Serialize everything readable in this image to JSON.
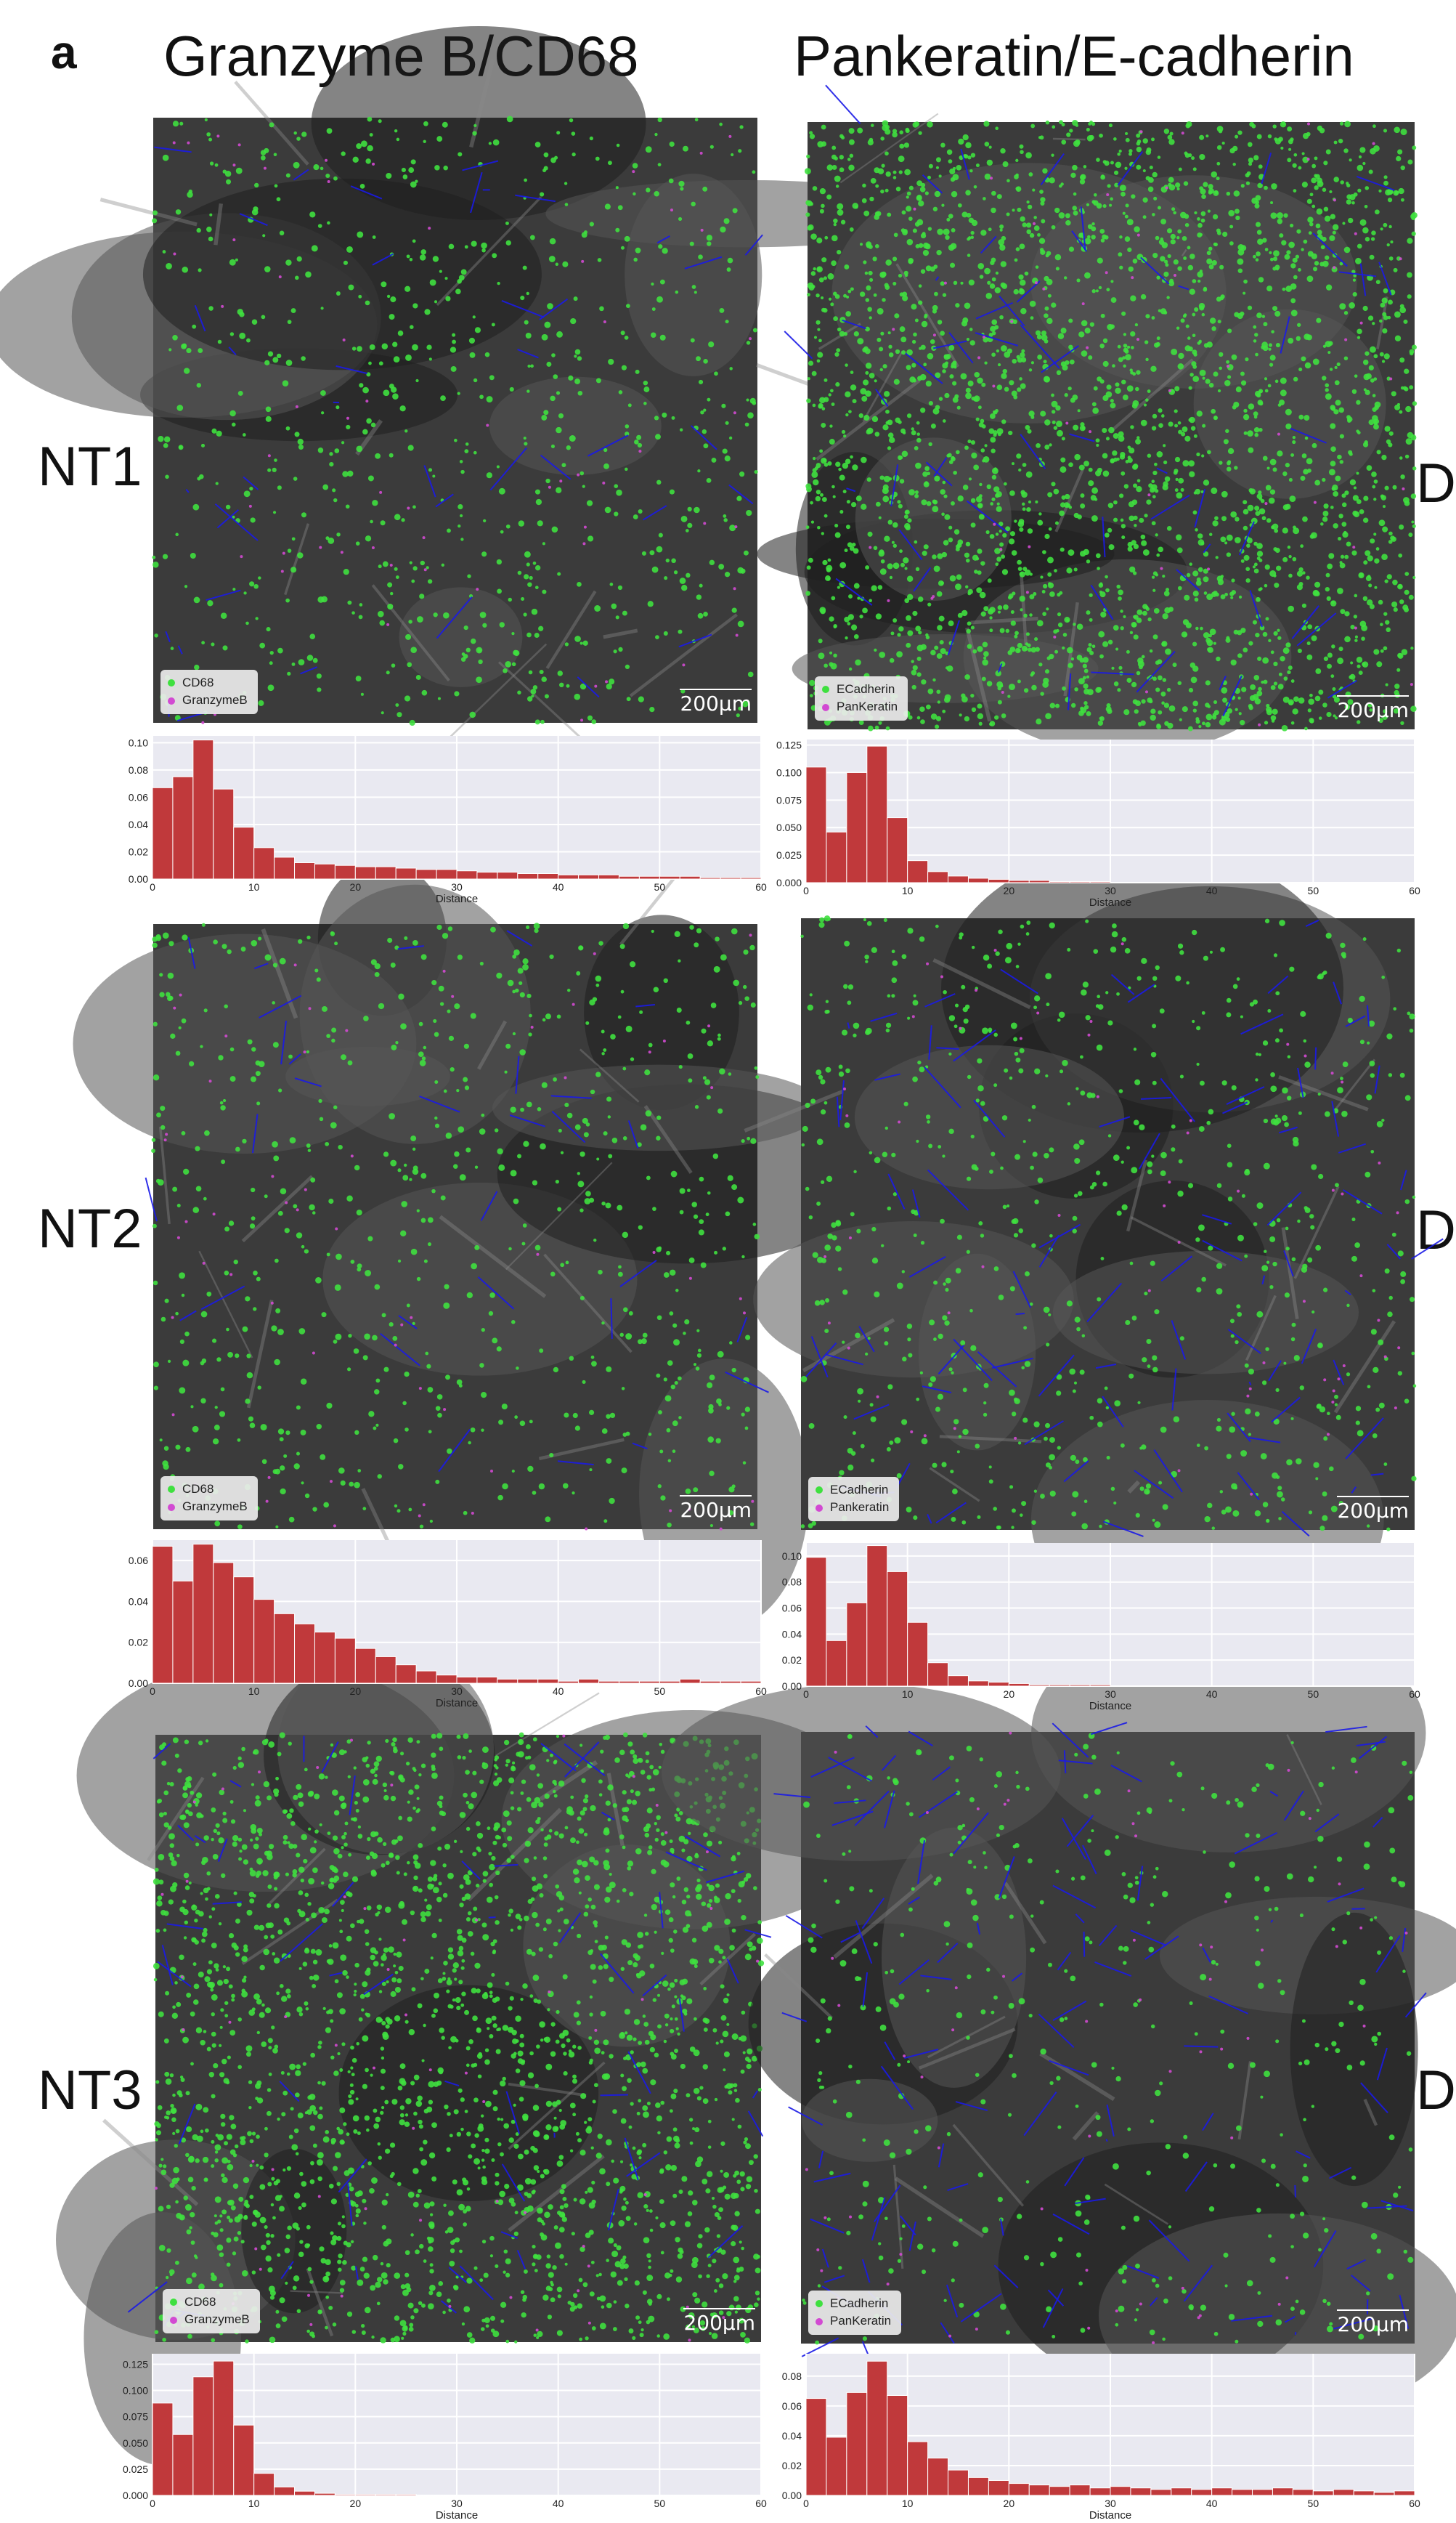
{
  "figure": {
    "panel_letter": "a",
    "columns": [
      "Granzyme B/CD68",
      "Pankeratin/E-cadherin"
    ],
    "rows": [
      "NT1",
      "NT2",
      "NT3"
    ],
    "cut_label": "D",
    "scale_bar": "200μm",
    "colors": {
      "green": "#3fe03f",
      "magenta": "#d24ad2",
      "blue": "#1a1ae6",
      "bar": "#c0393b",
      "plot_bg": "#e9e9f1"
    }
  },
  "images": [
    {
      "legend": [
        "CD68",
        "GranzymeB"
      ]
    },
    {
      "legend": [
        "ECadherin",
        "PanKeratin"
      ]
    },
    {
      "legend": [
        "CD68",
        "GranzymeB"
      ]
    },
    {
      "legend": [
        "ECadherin",
        "Pankeratin"
      ]
    },
    {
      "legend": [
        "CD68",
        "GranzymeB"
      ]
    },
    {
      "legend": [
        "ECadherin",
        "PanKeratin"
      ]
    }
  ],
  "chart_data": [
    {
      "type": "bar",
      "xlabel": "Distance",
      "xlim": [
        0,
        60
      ],
      "ylim": [
        0,
        0.105
      ],
      "xticks": [
        0,
        10,
        20,
        30,
        40,
        50,
        60
      ],
      "yticks": [
        "0.00",
        "0.02",
        "0.04",
        "0.06",
        "0.08",
        "0.10"
      ],
      "ytick_values": [
        0,
        0.02,
        0.04,
        0.06,
        0.08,
        0.1
      ],
      "bin_width": 2,
      "values": [
        0.067,
        0.075,
        0.102,
        0.066,
        0.038,
        0.023,
        0.016,
        0.012,
        0.011,
        0.01,
        0.009,
        0.009,
        0.008,
        0.007,
        0.007,
        0.006,
        0.005,
        0.005,
        0.004,
        0.004,
        0.003,
        0.003,
        0.003,
        0.002,
        0.002,
        0.002,
        0.002,
        0.001,
        0.001,
        0.001
      ]
    },
    {
      "type": "bar",
      "xlabel": "Distance",
      "xlim": [
        0,
        60
      ],
      "ylim": [
        0,
        0.13
      ],
      "xticks": [
        0,
        10,
        20,
        30,
        40,
        50,
        60
      ],
      "yticks": [
        "0.000",
        "0.025",
        "0.050",
        "0.075",
        "0.100",
        "0.125"
      ],
      "ytick_values": [
        0,
        0.025,
        0.05,
        0.075,
        0.1,
        0.125
      ],
      "bin_width": 2,
      "values": [
        0.105,
        0.046,
        0.1,
        0.124,
        0.059,
        0.02,
        0.01,
        0.006,
        0.004,
        0.003,
        0.002,
        0.002,
        0.001,
        0.001,
        0.001,
        0,
        0,
        0,
        0,
        0,
        0,
        0,
        0,
        0,
        0,
        0,
        0,
        0,
        0,
        0
      ]
    },
    {
      "type": "bar",
      "xlabel": "Distance",
      "xlim": [
        0,
        60
      ],
      "ylim": [
        0,
        0.07
      ],
      "xticks": [
        0,
        10,
        20,
        30,
        40,
        50,
        60
      ],
      "yticks": [
        "0.00",
        "0.02",
        "0.04",
        "0.06"
      ],
      "ytick_values": [
        0,
        0.02,
        0.04,
        0.06
      ],
      "bin_width": 2,
      "values": [
        0.067,
        0.05,
        0.068,
        0.059,
        0.052,
        0.041,
        0.034,
        0.029,
        0.025,
        0.022,
        0.017,
        0.013,
        0.009,
        0.006,
        0.004,
        0.003,
        0.003,
        0.002,
        0.002,
        0.002,
        0.001,
        0.002,
        0.001,
        0.001,
        0.001,
        0.001,
        0.002,
        0.001,
        0.001,
        0.001
      ]
    },
    {
      "type": "bar",
      "xlabel": "Distance",
      "xlim": [
        0,
        60
      ],
      "ylim": [
        0,
        0.11
      ],
      "xticks": [
        0,
        10,
        20,
        30,
        40,
        50,
        60
      ],
      "yticks": [
        "0.00",
        "0.02",
        "0.04",
        "0.06",
        "0.08",
        "0.10"
      ],
      "ytick_values": [
        0,
        0.02,
        0.04,
        0.06,
        0.08,
        0.1
      ],
      "bin_width": 2,
      "values": [
        0.099,
        0.035,
        0.064,
        0.108,
        0.088,
        0.049,
        0.018,
        0.008,
        0.004,
        0.003,
        0.002,
        0.001,
        0.001,
        0.001,
        0.001,
        0,
        0,
        0,
        0,
        0,
        0,
        0,
        0,
        0,
        0,
        0,
        0,
        0,
        0,
        0
      ]
    },
    {
      "type": "bar",
      "xlabel": "Distance",
      "xlim": [
        0,
        60
      ],
      "ylim": [
        0,
        0.135
      ],
      "xticks": [
        0,
        10,
        20,
        30,
        40,
        50,
        60
      ],
      "yticks": [
        "0.000",
        "0.025",
        "0.050",
        "0.075",
        "0.100",
        "0.125"
      ],
      "ytick_values": [
        0,
        0.025,
        0.05,
        0.075,
        0.1,
        0.125
      ],
      "bin_width": 2,
      "values": [
        0.088,
        0.058,
        0.113,
        0.128,
        0.067,
        0.021,
        0.008,
        0.004,
        0.002,
        0.001,
        0.001,
        0.001,
        0.001,
        0,
        0,
        0,
        0,
        0,
        0,
        0,
        0,
        0,
        0,
        0,
        0,
        0,
        0,
        0,
        0,
        0
      ]
    },
    {
      "type": "bar",
      "xlabel": "Distance",
      "xlim": [
        0,
        60
      ],
      "ylim": [
        0,
        0.095
      ],
      "xticks": [
        0,
        10,
        20,
        30,
        40,
        50,
        60
      ],
      "yticks": [
        "0.00",
        "0.02",
        "0.04",
        "0.06",
        "0.08"
      ],
      "ytick_values": [
        0,
        0.02,
        0.04,
        0.06,
        0.08
      ],
      "bin_width": 2,
      "values": [
        0.065,
        0.039,
        0.069,
        0.09,
        0.067,
        0.036,
        0.025,
        0.017,
        0.012,
        0.01,
        0.008,
        0.007,
        0.006,
        0.007,
        0.005,
        0.006,
        0.005,
        0.004,
        0.005,
        0.004,
        0.005,
        0.004,
        0.004,
        0.005,
        0.004,
        0.003,
        0.004,
        0.003,
        0.002,
        0.003
      ]
    }
  ]
}
